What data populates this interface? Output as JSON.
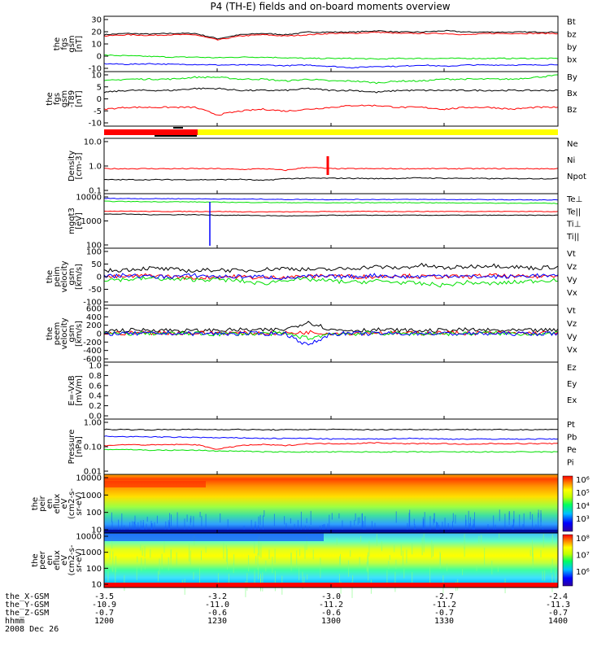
{
  "title": "P4 (TH-E) fields and on-board moments overview",
  "date": "2008 Dec 26",
  "ephemeris": {
    "labels": [
      "the_X-GSM",
      "the_Y-GSM",
      "the_Z-GSM",
      "hhmm"
    ],
    "columns": [
      [
        "-3.5",
        "-10.9",
        "-0.7",
        "1200"
      ],
      [
        "-3.2",
        "-11.0",
        "-0.6",
        "1230"
      ],
      [
        "-3.0",
        "-11.2",
        "-0.6",
        "1300"
      ],
      [
        "-2.7",
        "-11.2",
        "-0.7",
        "1330"
      ],
      [
        "-2.4",
        "-11.3",
        "-0.7",
        "1400"
      ]
    ]
  },
  "colors": {
    "black": "#000000",
    "red": "#ff0000",
    "green": "#00e000",
    "blue": "#0000ff",
    "yellow": "#ffff00"
  },
  "chart_data": [
    {
      "type": "line",
      "panel": "fgs",
      "ylabel": [
        "the",
        "fgs",
        "gsm",
        "[nT]"
      ],
      "yticks": [
        "30",
        "20",
        "10",
        "0",
        "-10"
      ],
      "ylim": [
        -12,
        30
      ],
      "series": [
        {
          "name": "Bt",
          "color": "#000000",
          "values": [
            16,
            17,
            16.5,
            17,
            17,
            13,
            16,
            17,
            16,
            18,
            18,
            18,
            19,
            18,
            18,
            19,
            18,
            18,
            18,
            18,
            18
          ]
        },
        {
          "name": "bz",
          "color": "#ff0000",
          "values": [
            15,
            16,
            15.5,
            16,
            16,
            12,
            15,
            16,
            15,
            16,
            17,
            17,
            18,
            17,
            17,
            17,
            16,
            17,
            17,
            17,
            17
          ]
        },
        {
          "name": "by",
          "color": "#00e000",
          "values": [
            0.5,
            0,
            -0.5,
            -1,
            -1,
            -1.5,
            -1,
            -1,
            -1.5,
            -2,
            -2,
            -2,
            -2.5,
            -2,
            -2,
            -2,
            -2,
            -2,
            -2,
            -2,
            -2
          ]
        },
        {
          "name": "bx",
          "color": "#0000ff",
          "values": [
            -6,
            -6.5,
            -6,
            -6.5,
            -6.5,
            -7,
            -7,
            -7,
            -7.5,
            -7,
            -8,
            -9,
            -8,
            -8,
            -7,
            -8,
            -7,
            -7,
            -7,
            -7,
            -6.5
          ]
        }
      ]
    },
    {
      "type": "line",
      "panel": "fgs_dsl",
      "ylabel": [
        "the",
        "fgs",
        "gsm",
        "-T89",
        "[nT]"
      ],
      "yticks": [
        "10",
        "5",
        "0",
        "-5",
        "-10"
      ],
      "ylim": [
        -13,
        16
      ],
      "series": [
        {
          "name": "By",
          "color": "#00e000",
          "values": [
            11,
            12,
            12,
            12,
            13,
            13,
            12,
            12,
            11,
            12,
            11,
            11,
            10,
            11,
            11,
            12,
            12,
            12,
            12,
            13,
            14
          ]
        },
        {
          "name": "Bx",
          "color": "#000000",
          "values": [
            5,
            6,
            6,
            6,
            7,
            7,
            6,
            6,
            6,
            7,
            6,
            6,
            5,
            6,
            6,
            6,
            6,
            6,
            6,
            6,
            6
          ]
        },
        {
          "name": "Bz",
          "color": "#ff0000",
          "values": [
            -4,
            -3,
            -3,
            -3,
            -3,
            -7,
            -5,
            -4,
            -5,
            -4,
            -3,
            -2,
            -2,
            -3,
            -3,
            -4,
            -3,
            -3,
            -4,
            -3,
            -3
          ]
        }
      ]
    },
    {
      "type": "line",
      "panel": "density",
      "log": true,
      "ylabel": [
        "Density",
        "[cm-3]"
      ],
      "yticks": [
        "10.0",
        "1.0",
        "0.1"
      ],
      "ylim": [
        0.1,
        10
      ],
      "series": [
        {
          "name": "Ne",
          "color": "#ff0000",
          "values": [
            0.8,
            0.8,
            0.8,
            0.8,
            0.8,
            0.8,
            0.75,
            0.8,
            0.7,
            0.9,
            0.8,
            0.8,
            0.8,
            0.8,
            0.8,
            0.8,
            0.8,
            0.8,
            0.8,
            0.8,
            0.8
          ]
        },
        {
          "name": "Ni",
          "color": "#000000",
          "values": [
            0.32,
            0.32,
            0.32,
            0.32,
            0.32,
            0.32,
            0.33,
            0.3,
            0.35,
            0.36,
            0.36,
            0.36,
            0.35,
            0.36,
            0.37,
            0.36,
            0.36,
            0.35,
            0.35,
            0.35,
            0.35
          ]
        },
        {
          "name": "Npot",
          "color": "#0000ff",
          "values": []
        }
      ]
    },
    {
      "type": "line",
      "panel": "temperature",
      "log": true,
      "ylabel": [
        "mgqt3",
        "[eV]"
      ],
      "yticks": [
        "10000",
        "1000",
        "100"
      ],
      "ylim": [
        10,
        10000
      ],
      "series": [
        {
          "name": "Te⊥",
          "color": "#ff0000",
          "values": [
            1100,
            1100,
            1050,
            1050,
            1050,
            1050,
            1000,
            1000,
            1000,
            1000,
            1050,
            1050,
            1050,
            1050,
            1050,
            1050,
            1050,
            1050,
            1050,
            1050,
            1050
          ]
        },
        {
          "name": "Te||",
          "color": "#000000",
          "values": [
            750,
            750,
            700,
            700,
            700,
            650,
            650,
            620,
            600,
            600,
            650,
            650,
            650,
            650,
            650,
            650,
            650,
            650,
            650,
            650,
            650
          ]
        },
        {
          "name": "Ti⊥",
          "color": "#0000ff",
          "values": [
            5500,
            5400,
            5300,
            5300,
            5200,
            5100,
            5000,
            5000,
            4800,
            4800,
            4700,
            4800,
            4800,
            4800,
            4800,
            4800,
            4700,
            4700,
            4600,
            4500,
            4500
          ]
        },
        {
          "name": "Ti||",
          "color": "#00e000",
          "values": [
            3800,
            3700,
            3600,
            3600,
            3500,
            3400,
            3300,
            3300,
            3200,
            3200,
            3100,
            3200,
            3200,
            3200,
            3200,
            3100,
            3100,
            3000,
            3000,
            3000,
            2900
          ]
        }
      ]
    },
    {
      "type": "line",
      "panel": "peim_velocity",
      "ylabel": [
        "the",
        "peim",
        "velocity",
        "gsm",
        "[km/s]"
      ],
      "yticks": [
        "100",
        "50",
        "0",
        "-50",
        "-100"
      ],
      "ylim": [
        -100,
        100
      ],
      "series": [
        {
          "name": "Vt",
          "color": "#000000",
          "values": [
            20,
            25,
            30,
            25,
            20,
            25,
            20,
            25,
            30,
            25,
            25,
            30,
            35,
            30,
            40,
            30,
            35,
            40,
            35,
            30,
            35
          ]
        },
        {
          "name": "Vz",
          "color": "#ff0000",
          "values": [
            0,
            0,
            5,
            0,
            -5,
            0,
            0,
            -5,
            0,
            0,
            5,
            0,
            0,
            5,
            0,
            0,
            0,
            5,
            0,
            0,
            5
          ]
        },
        {
          "name": "Vy",
          "color": "#00e000",
          "values": [
            -10,
            -10,
            -5,
            -10,
            -10,
            -10,
            -15,
            -25,
            -10,
            -10,
            -15,
            -20,
            -15,
            -20,
            -25,
            -30,
            -20,
            -25,
            -20,
            -15,
            -10
          ]
        },
        {
          "name": "Vx",
          "color": "#0000ff",
          "values": [
            0,
            5,
            0,
            0,
            5,
            0,
            0,
            0,
            -5,
            0,
            0,
            0,
            5,
            0,
            0,
            5,
            0,
            0,
            0,
            5,
            0
          ]
        }
      ]
    },
    {
      "type": "line",
      "panel": "peem_velocity",
      "ylabel": [
        "the",
        "peem",
        "velocity",
        "gsm",
        "[km/s]"
      ],
      "yticks": [
        "600",
        "400",
        "200",
        "0",
        "-200",
        "-400",
        "-600"
      ],
      "ylim": [
        -600,
        600
      ],
      "series": [
        {
          "name": "Vt",
          "color": "#000000",
          "values": [
            60,
            70,
            80,
            70,
            60,
            70,
            80,
            70,
            90,
            250,
            80,
            70,
            80,
            70,
            60,
            70,
            80,
            70,
            60,
            70,
            70
          ]
        },
        {
          "name": "Vz",
          "color": "#ff0000",
          "values": [
            10,
            10,
            20,
            10,
            10,
            20,
            10,
            10,
            10,
            30,
            10,
            10,
            20,
            10,
            10,
            20,
            10,
            10,
            10,
            10,
            20
          ]
        },
        {
          "name": "Vy",
          "color": "#00e000",
          "values": [
            0,
            0,
            10,
            0,
            0,
            -10,
            0,
            0,
            0,
            -100,
            0,
            0,
            10,
            0,
            0,
            0,
            0,
            10,
            0,
            0,
            0
          ]
        },
        {
          "name": "Vx",
          "color": "#0000ff",
          "values": [
            0,
            0,
            0,
            10,
            0,
            0,
            0,
            0,
            0,
            -250,
            0,
            0,
            0,
            0,
            10,
            0,
            0,
            0,
            0,
            0,
            0
          ]
        }
      ]
    },
    {
      "type": "line",
      "panel": "efield",
      "ylabel": [
        "E=-VxB",
        "[mV/m]"
      ],
      "yticks": [
        "1.0",
        "0.8",
        "0.6",
        "0.4",
        "0.2",
        "0.0"
      ],
      "ylim": [
        0,
        1
      ],
      "series": [
        {
          "name": "Ez",
          "color": "#ff0000",
          "values": []
        },
        {
          "name": "Ey",
          "color": "#00e000",
          "values": []
        },
        {
          "name": "Ex",
          "color": "#0000ff",
          "values": []
        }
      ]
    },
    {
      "type": "line",
      "panel": "pressure",
      "log": true,
      "ylabel": [
        "Pressure",
        "[nPa]"
      ],
      "yticks": [
        "1.00",
        "0.10",
        "0.01"
      ],
      "ylim": [
        0.01,
        1
      ],
      "series": [
        {
          "name": "Pt",
          "color": "#000000",
          "values": [
            0.42,
            0.42,
            0.41,
            0.42,
            0.42,
            0.42,
            0.42,
            0.41,
            0.41,
            0.42,
            0.42,
            0.42,
            0.41,
            0.42,
            0.42,
            0.42,
            0.42,
            0.42,
            0.41,
            0.42,
            0.42
          ]
        },
        {
          "name": "Pb",
          "color": "#ff0000",
          "values": [
            0.11,
            0.12,
            0.115,
            0.12,
            0.12,
            0.08,
            0.11,
            0.12,
            0.11,
            0.13,
            0.13,
            0.13,
            0.14,
            0.13,
            0.13,
            0.13,
            0.12,
            0.13,
            0.13,
            0.13,
            0.13
          ]
        },
        {
          "name": "Pe",
          "color": "#00e000",
          "values": [
            0.08,
            0.08,
            0.075,
            0.075,
            0.075,
            0.07,
            0.07,
            0.065,
            0.065,
            0.065,
            0.065,
            0.065,
            0.065,
            0.065,
            0.065,
            0.065,
            0.065,
            0.065,
            0.065,
            0.065,
            0.065
          ]
        },
        {
          "name": "Pi",
          "color": "#0000ff",
          "values": [
            0.24,
            0.23,
            0.23,
            0.22,
            0.22,
            0.21,
            0.21,
            0.2,
            0.2,
            0.2,
            0.19,
            0.19,
            0.19,
            0.2,
            0.2,
            0.19,
            0.19,
            0.19,
            0.19,
            0.19,
            0.19
          ]
        }
      ]
    },
    {
      "type": "heatmap",
      "panel": "peir_spectrogram",
      "log": true,
      "ylabel": [
        "the",
        "peir",
        "en",
        "eflux",
        "eV",
        "(cm2-s-",
        "sr-eV)"
      ],
      "yticks": [
        "10000",
        "1000",
        "100",
        "10"
      ],
      "ylim": [
        5,
        20000
      ],
      "colorbar_ticks": [
        "10⁶",
        "10⁵",
        "10⁴",
        "10³"
      ]
    },
    {
      "type": "heatmap",
      "panel": "peer_spectrogram",
      "log": true,
      "ylabel": [
        "the",
        "peer",
        "en",
        "eflux",
        "eV",
        "(cm2-s-",
        "sr-eV)"
      ],
      "yticks": [
        "10000",
        "1000",
        "100",
        "10"
      ],
      "ylim": [
        8,
        25000
      ],
      "colorbar_ticks": [
        "10⁸",
        "10⁷",
        "10⁶"
      ]
    }
  ]
}
